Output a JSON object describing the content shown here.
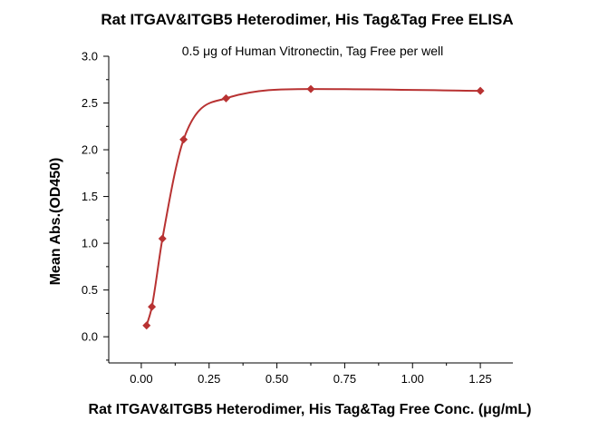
{
  "colors": {
    "series": "#b83232",
    "axis": "#000000",
    "background": "#ffffff"
  },
  "chart_data": {
    "type": "scatter",
    "title": "Rat ITGAV&ITGB5 Heterodimer, His Tag&Tag Free ELISA",
    "subtitle": "0.5 μg of Human Vitronectin, Tag Free per well",
    "xlabel": "Rat ITGAV&ITGB5 Heterodimer, His Tag&Tag Free Conc. (μg/mL)",
    "ylabel": "Mean Abs.(OD450)",
    "xlim": [
      -0.12,
      1.37
    ],
    "ylim": [
      -0.28,
      3.0
    ],
    "x_ticks": [
      0.0,
      0.25,
      0.5,
      0.75,
      1.0,
      1.25
    ],
    "x_tick_labels": [
      "0.00",
      "0.25",
      "0.50",
      "0.75",
      "1.00",
      "1.25"
    ],
    "y_ticks": [
      0.0,
      0.5,
      1.0,
      1.5,
      2.0,
      2.5,
      3.0
    ],
    "y_tick_labels": [
      "0.0",
      "0.5",
      "1.0",
      "1.5",
      "2.0",
      "2.5",
      "3.0"
    ],
    "grid": false,
    "legend": "none",
    "series": [
      {
        "marker": "diamond",
        "fit": "four-parameter logistic curve",
        "x": [
          0.0195,
          0.039,
          0.078,
          0.156,
          0.3125,
          0.625,
          1.25
        ],
        "y": [
          0.12,
          0.32,
          1.05,
          2.11,
          2.55,
          2.65,
          2.63
        ]
      }
    ]
  }
}
